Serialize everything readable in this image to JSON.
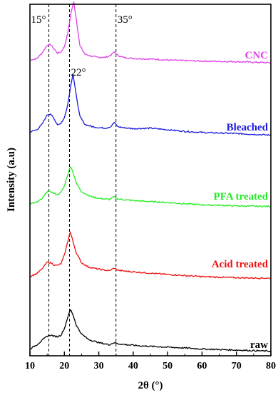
{
  "chart_data": {
    "type": "line",
    "xlabel": "2θ (°)",
    "ylabel": "Intensity (a.u)",
    "xlim": [
      10,
      80
    ],
    "xticks": [
      10,
      20,
      30,
      40,
      50,
      60,
      70,
      80
    ],
    "y_ticks_shown": false,
    "grid": false,
    "legend": "labels placed at right end of each curve",
    "reference_lines": [
      {
        "x": 15.5,
        "label": "15°"
      },
      {
        "x": 21.5,
        "label": "22°"
      },
      {
        "x": 35,
        "label": "35°"
      }
    ],
    "series": [
      {
        "name": "CNC",
        "color": "#e040e8",
        "offset": 4,
        "points": [
          [
            10,
            0.05
          ],
          [
            12,
            0.08
          ],
          [
            13.5,
            0.18
          ],
          [
            15,
            0.33
          ],
          [
            16,
            0.34
          ],
          [
            17,
            0.26
          ],
          [
            18,
            0.18
          ],
          [
            19,
            0.2
          ],
          [
            20,
            0.3
          ],
          [
            21,
            0.55
          ],
          [
            22,
            0.95
          ],
          [
            22.7,
            1.15
          ],
          [
            23.5,
            0.8
          ],
          [
            24.5,
            0.32
          ],
          [
            26,
            0.16
          ],
          [
            28,
            0.12
          ],
          [
            30,
            0.1
          ],
          [
            32,
            0.1
          ],
          [
            33.5,
            0.14
          ],
          [
            34.5,
            0.2
          ],
          [
            35.5,
            0.14
          ],
          [
            37,
            0.1
          ],
          [
            40,
            0.08
          ],
          [
            45,
            0.07
          ],
          [
            50,
            0.05
          ],
          [
            55,
            0.04
          ],
          [
            60,
            0.03
          ],
          [
            70,
            0.02
          ],
          [
            80,
            0.0
          ]
        ]
      },
      {
        "name": "Bleached",
        "color": "#1a1adc",
        "offset": 3,
        "points": [
          [
            10,
            0.06
          ],
          [
            12,
            0.1
          ],
          [
            13.5,
            0.2
          ],
          [
            15,
            0.38
          ],
          [
            16,
            0.4
          ],
          [
            17,
            0.3
          ],
          [
            18,
            0.2
          ],
          [
            19,
            0.22
          ],
          [
            20,
            0.32
          ],
          [
            21,
            0.58
          ],
          [
            22,
            0.98
          ],
          [
            22.5,
            1.15
          ],
          [
            23.3,
            0.8
          ],
          [
            24.5,
            0.35
          ],
          [
            26,
            0.2
          ],
          [
            28,
            0.16
          ],
          [
            30,
            0.14
          ],
          [
            32,
            0.13
          ],
          [
            33.5,
            0.16
          ],
          [
            34.5,
            0.24
          ],
          [
            35.5,
            0.16
          ],
          [
            37,
            0.14
          ],
          [
            40,
            0.12
          ],
          [
            45,
            0.13
          ],
          [
            50,
            0.1
          ],
          [
            55,
            0.07
          ],
          [
            60,
            0.05
          ],
          [
            70,
            0.03
          ],
          [
            80,
            0.0
          ]
        ]
      },
      {
        "name": "PFA treated",
        "color": "#22ee22",
        "offset": 2,
        "points": [
          [
            10,
            0.07
          ],
          [
            12,
            0.1
          ],
          [
            13.5,
            0.16
          ],
          [
            15,
            0.3
          ],
          [
            16,
            0.3
          ],
          [
            17,
            0.26
          ],
          [
            18,
            0.24
          ],
          [
            19,
            0.28
          ],
          [
            20,
            0.4
          ],
          [
            21,
            0.62
          ],
          [
            21.8,
            0.78
          ],
          [
            22.5,
            0.66
          ],
          [
            23.5,
            0.45
          ],
          [
            25,
            0.3
          ],
          [
            27,
            0.22
          ],
          [
            30,
            0.17
          ],
          [
            33,
            0.15
          ],
          [
            34.5,
            0.2
          ],
          [
            35.5,
            0.16
          ],
          [
            38,
            0.14
          ],
          [
            42,
            0.12
          ],
          [
            48,
            0.1
          ],
          [
            55,
            0.07
          ],
          [
            60,
            0.05
          ],
          [
            70,
            0.03
          ],
          [
            80,
            0.02
          ]
        ]
      },
      {
        "name": "Acid treated",
        "color": "#ee1111",
        "offset": 1,
        "points": [
          [
            10,
            0.06
          ],
          [
            12,
            0.12
          ],
          [
            13.5,
            0.2
          ],
          [
            15,
            0.33
          ],
          [
            16,
            0.32
          ],
          [
            17,
            0.28
          ],
          [
            18,
            0.27
          ],
          [
            19,
            0.3
          ],
          [
            20,
            0.46
          ],
          [
            21,
            0.72
          ],
          [
            21.7,
            0.9
          ],
          [
            22.5,
            0.72
          ],
          [
            23.5,
            0.5
          ],
          [
            25,
            0.32
          ],
          [
            27,
            0.24
          ],
          [
            30,
            0.2
          ],
          [
            33,
            0.17
          ],
          [
            34.5,
            0.22
          ],
          [
            35.5,
            0.18
          ],
          [
            38,
            0.16
          ],
          [
            42,
            0.14
          ],
          [
            48,
            0.11
          ],
          [
            55,
            0.08
          ],
          [
            60,
            0.06
          ],
          [
            70,
            0.04
          ],
          [
            80,
            0.03
          ]
        ]
      },
      {
        "name": "raw",
        "color": "#000000",
        "offset": 0,
        "points": [
          [
            10,
            0.06
          ],
          [
            12,
            0.14
          ],
          [
            13.5,
            0.22
          ],
          [
            15,
            0.3
          ],
          [
            16,
            0.32
          ],
          [
            17,
            0.3
          ],
          [
            18,
            0.29
          ],
          [
            19,
            0.32
          ],
          [
            20,
            0.44
          ],
          [
            21,
            0.66
          ],
          [
            21.8,
            0.8
          ],
          [
            22.5,
            0.7
          ],
          [
            23.5,
            0.5
          ],
          [
            25,
            0.34
          ],
          [
            27,
            0.24
          ],
          [
            30,
            0.18
          ],
          [
            33,
            0.14
          ],
          [
            34.5,
            0.18
          ],
          [
            35.5,
            0.16
          ],
          [
            38,
            0.14
          ],
          [
            42,
            0.12
          ],
          [
            48,
            0.1
          ],
          [
            55,
            0.08
          ],
          [
            60,
            0.06
          ],
          [
            70,
            0.04
          ],
          [
            80,
            0.02
          ]
        ]
      }
    ]
  }
}
